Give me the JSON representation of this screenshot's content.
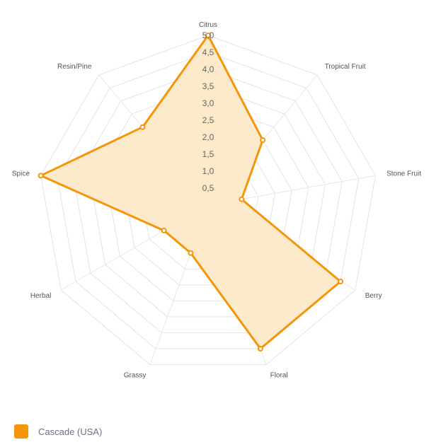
{
  "chart_data": {
    "type": "radar",
    "axes": [
      "Citrus",
      "Tropical Fruit",
      "Stone Fruit",
      "Berry",
      "Floral",
      "Grassy",
      "Herbal",
      "Spice",
      "Resin/Pine"
    ],
    "ticks": [
      "0,5",
      "1,0",
      "1,5",
      "2,0",
      "2,5",
      "3,0",
      "3,5",
      "4,0",
      "4,5",
      "5,0"
    ],
    "r_range": [
      0,
      5
    ],
    "grid": true,
    "legend_position": "bottom-left",
    "series": [
      {
        "name": "Cascade (USA)",
        "values": [
          5.0,
          2.5,
          1.0,
          4.5,
          4.5,
          1.5,
          1.5,
          5.0,
          3.0
        ],
        "color": "#f5960a",
        "fill": "#fde6c2"
      }
    ]
  }
}
